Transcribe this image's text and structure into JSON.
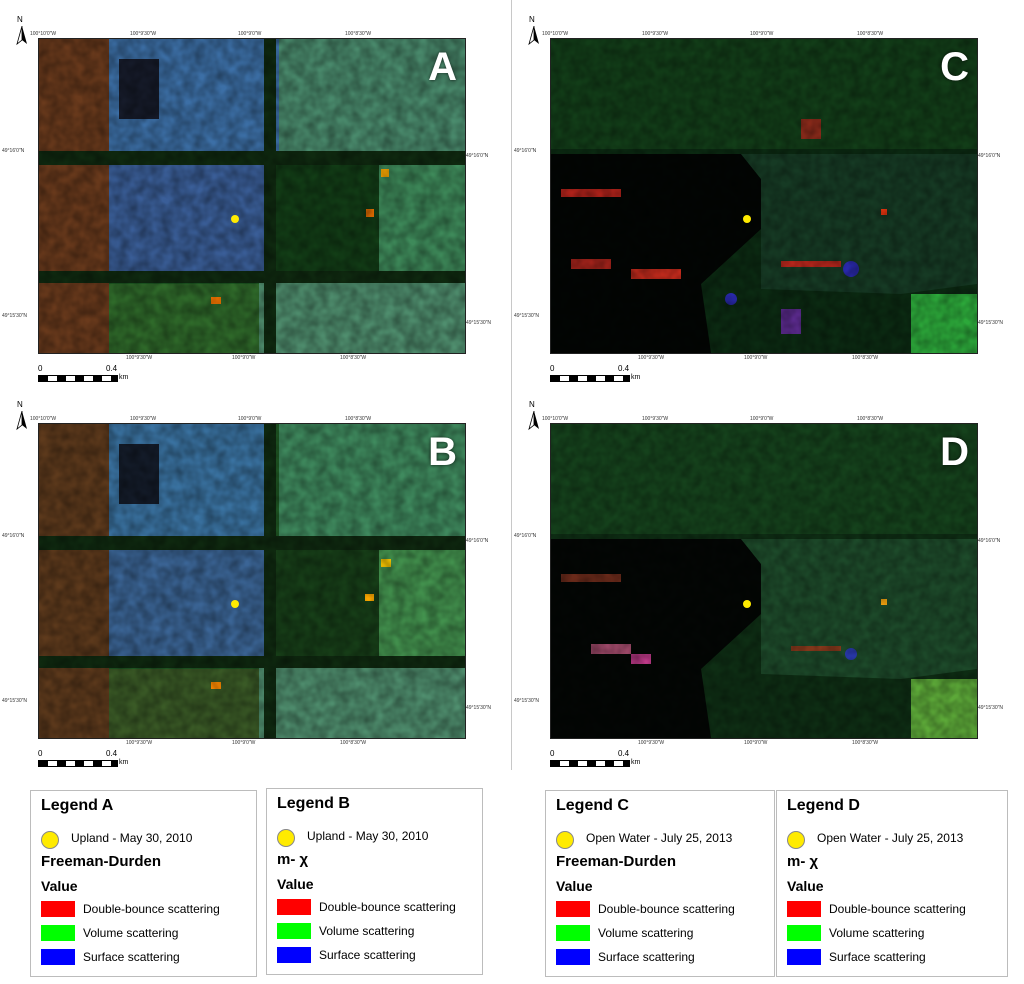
{
  "panels": [
    {
      "id": "A",
      "letter": "A",
      "coords_top": [
        "100°10'0\"W",
        "100°9'30\"W",
        "100°9'0\"W",
        "100°8'30\"W"
      ],
      "coords_bottom": [
        "100°9'30\"W",
        "100°9'0\"W",
        "100°8'30\"W"
      ],
      "coords_left": [
        "49°16'0\"N",
        "49°15'30\"N"
      ],
      "coords_right": [
        "49°16'0\"N",
        "49°15'30\"N"
      ],
      "scale": {
        "zero": "0",
        "max": "0.4",
        "unit": "km"
      }
    },
    {
      "id": "C",
      "letter": "C",
      "coords_top": [
        "100°10'0\"W",
        "100°9'30\"W",
        "100°9'0\"W",
        "100°8'30\"W"
      ],
      "coords_bottom": [
        "100°9'30\"W",
        "100°9'0\"W",
        "100°8'30\"W"
      ],
      "coords_left": [
        "49°16'0\"N",
        "49°15'30\"N"
      ],
      "coords_right": [
        "49°16'0\"N",
        "49°15'30\"N"
      ],
      "scale": {
        "zero": "0",
        "max": "0.4",
        "unit": "km"
      }
    },
    {
      "id": "B",
      "letter": "B",
      "coords_top": [
        "100°10'0\"W",
        "100°9'30\"W",
        "100°9'0\"W",
        "100°8'30\"W"
      ],
      "coords_bottom": [
        "100°9'30\"W",
        "100°9'0\"W",
        "100°8'30\"W"
      ],
      "coords_left": [
        "49°16'0\"N",
        "49°15'30\"N"
      ],
      "coords_right": [
        "49°16'0\"N",
        "49°15'30\"N"
      ],
      "scale": {
        "zero": "0",
        "max": "0.4",
        "unit": "km"
      }
    },
    {
      "id": "D",
      "letter": "D",
      "coords_top": [
        "100°10'0\"W",
        "100°9'30\"W",
        "100°9'0\"W",
        "100°8'30\"W"
      ],
      "coords_bottom": [
        "100°9'30\"W",
        "100°9'0\"W",
        "100°8'30\"W"
      ],
      "coords_left": [
        "49°16'0\"N",
        "49°15'30\"N"
      ],
      "coords_right": [
        "49°16'0\"N",
        "49°15'30\"N"
      ],
      "scale": {
        "zero": "0",
        "max": "0.4",
        "unit": "km"
      }
    }
  ],
  "north_label": "N",
  "legends": [
    {
      "title": "Legend A",
      "point": "Upland - May 30, 2010",
      "method": "Freeman-Durden",
      "value_label": "Value",
      "items": [
        "Double-bounce scattering",
        "Volume scattering",
        "Surface scattering"
      ]
    },
    {
      "title": "Legend B",
      "point": "Upland - May 30, 2010",
      "method": "m- χ",
      "value_label": "Value",
      "items": [
        "Double-bounce scattering",
        "Volume scattering",
        "Surface scattering"
      ]
    },
    {
      "title": "Legend C",
      "point": "Open Water - July 25, 2013",
      "method": "Freeman-Durden",
      "value_label": "Value",
      "items": [
        "Double-bounce scattering",
        "Volume scattering",
        "Surface scattering"
      ]
    },
    {
      "title": "Legend D",
      "point": "Open Water - July 25, 2013",
      "method": "m- χ",
      "value_label": "Value",
      "items": [
        "Double-bounce scattering",
        "Volume scattering",
        "Surface scattering"
      ]
    }
  ],
  "colors": {
    "double_bounce": "#ff0000",
    "volume": "#00ff00",
    "surface": "#0000ff",
    "sample_point": "#ffeb00"
  }
}
